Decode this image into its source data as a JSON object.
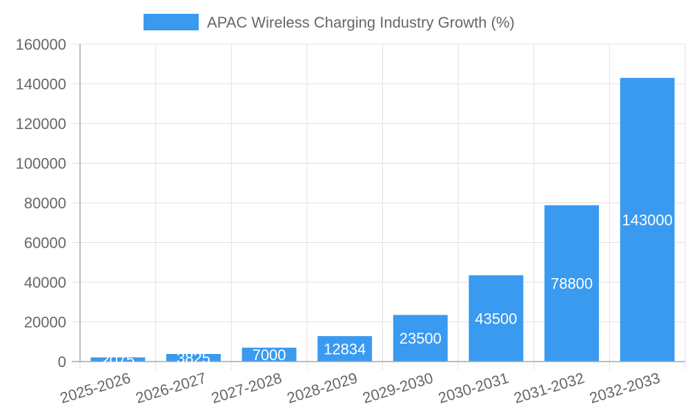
{
  "chart_data": {
    "type": "bar",
    "categories": [
      "2025-2026",
      "2026-2027",
      "2027-2028",
      "2028-2029",
      "2029-2030",
      "2030-2031",
      "2031-2032",
      "2032-2033"
    ],
    "series": [
      {
        "name": "APAC Wireless Charging Industry Growth (%)",
        "values": [
          2075,
          3825,
          7000,
          12834,
          23500,
          43500,
          78800,
          143000
        ]
      }
    ],
    "ylim": [
      0,
      160000
    ],
    "yticks": [
      0,
      20000,
      40000,
      60000,
      80000,
      100000,
      120000,
      140000,
      160000
    ],
    "grid": true,
    "legend_position": "top",
    "data_labels": true,
    "colors": {
      "bar": "#3a9af0",
      "grid": "#e1e1e1",
      "axis": "#a6a6a6",
      "text": "#666666",
      "label": "#ffffff"
    }
  }
}
